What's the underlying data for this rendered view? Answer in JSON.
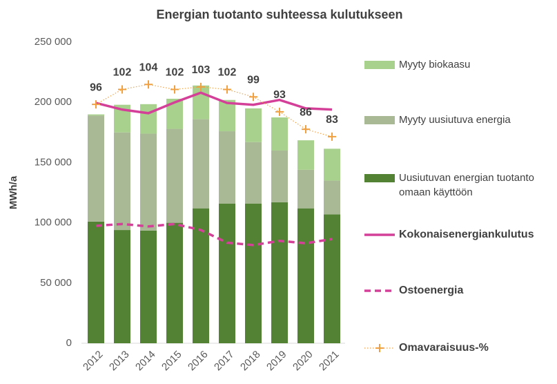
{
  "chart_data": {
    "type": "bar",
    "title": "Energian tuotanto suhteessa kulutukseen",
    "y_label": "MWh/a",
    "categories": [
      "2012",
      "2013",
      "2014",
      "2015",
      "2016",
      "2017",
      "2018",
      "2019",
      "2020",
      "2021"
    ],
    "ylim": [
      0,
      250000
    ],
    "yticks": [
      0,
      {
        "value": 50000,
        "label": "50 000"
      },
      {
        "value": 100000,
        "label": "100 000"
      },
      {
        "value": 150000,
        "label": "150 000"
      },
      {
        "value": 200000,
        "label": "200 000"
      },
      {
        "value": 250000,
        "label": "250 000"
      }
    ],
    "y2lim": [
      0,
      121
    ],
    "series": [
      {
        "name": "Uusiutuvan energian tuotanto omaan käyttöön",
        "type": "bar",
        "stack": true,
        "color": "#548235",
        "values": [
          101000,
          94000,
          93500,
          100000,
          112000,
          116000,
          116000,
          117000,
          112000,
          107000
        ]
      },
      {
        "name": "Myyty uusiutuva energia",
        "type": "bar",
        "stack": true,
        "color": "#a9b995",
        "values": [
          88000,
          81000,
          80500,
          78000,
          74000,
          60000,
          51000,
          43000,
          32000,
          28000
        ]
      },
      {
        "name": "Myyty biokaasu",
        "type": "bar",
        "stack": true,
        "color": "#a9d18e",
        "values": [
          1000,
          23000,
          24500,
          25000,
          28000,
          26000,
          28000,
          27500,
          24500,
          26500
        ]
      },
      {
        "name": "Kokonaisenergiankulutus",
        "type": "line",
        "color": "#d43f98",
        "dash": false,
        "values": [
          199500,
          194000,
          191000,
          200000,
          208000,
          199500,
          198000,
          202000,
          195000,
          194000
        ]
      },
      {
        "name": "Ostoenergia",
        "type": "line",
        "color": "#d43f98",
        "dash": true,
        "values": [
          97500,
          99000,
          97000,
          99000,
          94000,
          83500,
          81500,
          85000,
          83000,
          86500
        ]
      },
      {
        "name": "Omavaraisuus-%",
        "type": "line",
        "axis": "y2",
        "color": "#f0a040",
        "markers": true,
        "data_labels": true,
        "values": [
          96,
          102,
          104,
          102,
          103,
          102,
          99,
          93,
          86,
          83
        ]
      }
    ]
  }
}
